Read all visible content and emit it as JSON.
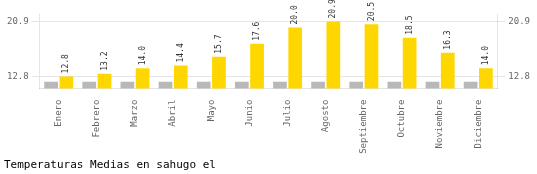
{
  "chart_data": {
    "type": "bar",
    "title": "Temperaturas Medias en sahugo el",
    "categories": [
      "Enero",
      "Febrero",
      "Marzo",
      "Abril",
      "Mayo",
      "Junio",
      "Julio",
      "Agosto",
      "Septiembre",
      "Octubre",
      "Noviembre",
      "Diciembre"
    ],
    "series": [
      {
        "color": "#B8B8B8",
        "values": [
          12.0,
          12.0,
          12.0,
          12.0,
          12.0,
          12.0,
          12.0,
          12.0,
          12.0,
          12.0,
          12.0,
          12.0
        ]
      },
      {
        "color": "#FFD700",
        "values": [
          12.8,
          13.2,
          14.0,
          14.4,
          15.7,
          17.6,
          20.0,
          20.9,
          20.5,
          18.5,
          16.3,
          14.0
        ],
        "value_labels": [
          "12.8",
          "13.2",
          "14.0",
          "14.4",
          "15.7",
          "17.6",
          "20.0",
          "20.9",
          "20.5",
          "18.5",
          "16.3",
          "14.0"
        ],
        "data_labels": true
      }
    ],
    "ylim": [
      11.0,
      22.0
    ],
    "yticks": [
      12.8,
      20.9
    ],
    "y2lim": [
      11.0,
      22.0
    ],
    "y2ticks": [
      12.8,
      20.9
    ],
    "grid": true
  }
}
